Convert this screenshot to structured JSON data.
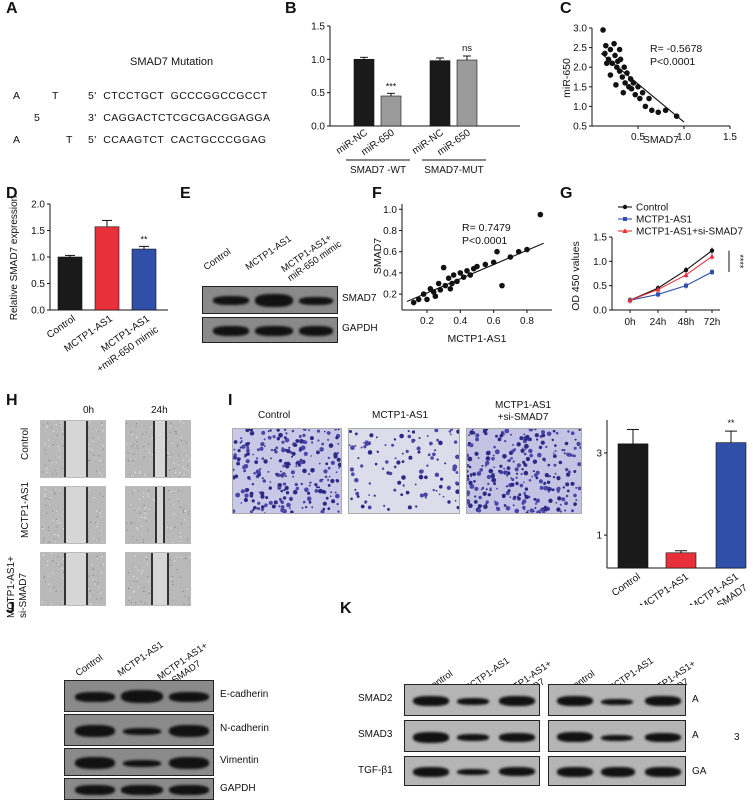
{
  "panels": {
    "A": {
      "letter": "A",
      "title": "SMAD7 Mutation",
      "rows": [
        {
          "prefix": "A",
          "mid": "T",
          "seq": "5'  CTCCTGCT  GCCCGGCCGCCT"
        },
        {
          "prefix": "",
          "mid": "5",
          "seq": "3'  CAGGACTCTCGCGACGGAGGA"
        },
        {
          "prefix": "A",
          "mid": "T",
          "seq": "5'  CCAAGTCT  CACTGCCCGGAG"
        }
      ]
    },
    "B": {
      "letter": "B",
      "groups": [
        "SMAD7 -WT",
        "SMAD7-MUT"
      ],
      "annotations": [
        "***",
        "ns"
      ]
    },
    "C": {
      "letter": "C",
      "r_text": "R= -0.5678",
      "p_text": "P<0.0001"
    },
    "D": {
      "letter": "D",
      "annotation": "**"
    },
    "E": {
      "letter": "E",
      "columns": [
        "Control",
        "MCTP1-AS1",
        "MCTP1-AS1+\nmiR-650 mimic"
      ],
      "rows": [
        "SMAD7",
        "GAPDH"
      ]
    },
    "F": {
      "letter": "F",
      "r_text": "R= 0.7479",
      "p_text": "P<0.0001"
    },
    "G": {
      "letter": "G",
      "annotation": "****"
    },
    "H": {
      "letter": "H",
      "times": [
        "0h",
        "24h"
      ],
      "rows": [
        "Control",
        "MCTP1-AS1",
        "MCTP1-AS1+\nsi-SMAD7"
      ]
    },
    "I": {
      "letter": "I",
      "images": [
        "Control",
        "MCTP1-AS1",
        "MCTP1-AS1\n+si-SMAD7"
      ],
      "annotation": "**"
    },
    "J": {
      "letter": "J",
      "columns": [
        "Control",
        "MCTP1-AS1",
        "MCTP1-AS1+\nsi-SMAD7"
      ],
      "rows": [
        "E-cadherin",
        "N-cadherin",
        "Vimentin",
        "GAPDH"
      ]
    },
    "K": {
      "letter": "K",
      "columns": [
        "Control",
        "MCTP1-AS1",
        "MCTP1-AS1+\nsi-SMAD7"
      ],
      "rows": [
        "SMAD2",
        "SMAD3",
        "TGF-β1"
      ],
      "right_labels": [
        "A",
        "A",
        "GA"
      ],
      "extra_label": "3"
    }
  },
  "chart_data": [
    {
      "id": "B",
      "type": "bar",
      "categories": [
        "miR-NC",
        "miR-650",
        "miR-NC",
        "miR-650"
      ],
      "values": [
        1.0,
        0.45,
        0.98,
        0.99
      ],
      "errors": [
        0.03,
        0.04,
        0.04,
        0.06
      ],
      "colors": [
        "#1a1a1a",
        "#9b9b9b",
        "#1a1a1a",
        "#9b9b9b"
      ],
      "yticks": [
        0.0,
        0.5,
        1.0,
        1.5
      ],
      "ylim": [
        0,
        1.5
      ]
    },
    {
      "id": "C",
      "type": "scatter",
      "xlabel": "SMAD7",
      "ylabel": "miR-650",
      "xticks": [
        0.5,
        1.0,
        1.5
      ],
      "yticks": [
        0.5,
        1.0,
        1.5,
        2.0,
        2.5,
        3.0
      ],
      "xlim": [
        0,
        1.5
      ],
      "ylim": [
        0.5,
        3.0
      ],
      "points": [
        [
          0.12,
          2.95
        ],
        [
          0.15,
          2.55
        ],
        [
          0.14,
          2.35
        ],
        [
          0.18,
          2.2
        ],
        [
          0.2,
          2.45
        ],
        [
          0.22,
          2.1
        ],
        [
          0.24,
          2.6
        ],
        [
          0.25,
          2.3
        ],
        [
          0.27,
          2.0
        ],
        [
          0.28,
          2.15
        ],
        [
          0.3,
          1.9
        ],
        [
          0.31,
          2.2
        ],
        [
          0.33,
          1.75
        ],
        [
          0.35,
          2.0
        ],
        [
          0.36,
          1.6
        ],
        [
          0.38,
          1.85
        ],
        [
          0.4,
          1.5
        ],
        [
          0.42,
          1.7
        ],
        [
          0.43,
          1.45
        ],
        [
          0.45,
          1.6
        ],
        [
          0.47,
          1.3
        ],
        [
          0.5,
          1.5
        ],
        [
          0.52,
          1.2
        ],
        [
          0.55,
          1.35
        ],
        [
          0.58,
          1.0
        ],
        [
          0.62,
          1.2
        ],
        [
          0.65,
          0.9
        ],
        [
          0.72,
          0.85
        ],
        [
          0.8,
          0.9
        ],
        [
          0.92,
          0.75
        ],
        [
          0.2,
          1.8
        ],
        [
          0.26,
          1.55
        ],
        [
          0.34,
          1.35
        ],
        [
          0.3,
          2.45
        ],
        [
          0.16,
          2.1
        ]
      ],
      "fit": [
        [
          0.1,
          2.35
        ],
        [
          1.0,
          0.6
        ]
      ]
    },
    {
      "id": "D",
      "type": "bar",
      "ylabel": "Relative SMAD7 expression",
      "categories": [
        "Control",
        "MCTP1-AS1",
        "MCTP1-AS1\n+miR-650 mimic"
      ],
      "values": [
        1.0,
        1.57,
        1.15
      ],
      "errors": [
        0.03,
        0.12,
        0.05
      ],
      "colors": [
        "#1a1a1a",
        "#e8303a",
        "#2f4fa8"
      ],
      "yticks": [
        0.0,
        0.5,
        1.0,
        1.5,
        2.0
      ],
      "ylim": [
        0,
        2.0
      ]
    },
    {
      "id": "F",
      "type": "scatter",
      "xlabel": "MCTP1-AS1",
      "ylabel": "SMAD7",
      "xticks": [
        0.2,
        0.4,
        0.6,
        0.8
      ],
      "yticks": [
        0.2,
        0.4,
        0.6,
        0.8,
        1.0
      ],
      "xlim": [
        0.05,
        0.95
      ],
      "ylim": [
        0.05,
        1.05
      ],
      "points": [
        [
          0.12,
          0.12
        ],
        [
          0.15,
          0.15
        ],
        [
          0.18,
          0.2
        ],
        [
          0.2,
          0.15
        ],
        [
          0.22,
          0.25
        ],
        [
          0.25,
          0.18
        ],
        [
          0.27,
          0.3
        ],
        [
          0.28,
          0.24
        ],
        [
          0.3,
          0.45
        ],
        [
          0.31,
          0.28
        ],
        [
          0.33,
          0.35
        ],
        [
          0.35,
          0.3
        ],
        [
          0.36,
          0.38
        ],
        [
          0.38,
          0.32
        ],
        [
          0.4,
          0.4
        ],
        [
          0.42,
          0.36
        ],
        [
          0.44,
          0.42
        ],
        [
          0.46,
          0.38
        ],
        [
          0.48,
          0.44
        ],
        [
          0.5,
          0.46
        ],
        [
          0.55,
          0.48
        ],
        [
          0.6,
          0.5
        ],
        [
          0.62,
          0.6
        ],
        [
          0.65,
          0.28
        ],
        [
          0.7,
          0.55
        ],
        [
          0.75,
          0.6
        ],
        [
          0.8,
          0.62
        ],
        [
          0.88,
          0.95
        ],
        [
          0.24,
          0.22
        ],
        [
          0.34,
          0.25
        ]
      ],
      "fit": [
        [
          0.08,
          0.13
        ],
        [
          0.9,
          0.68
        ]
      ]
    },
    {
      "id": "G",
      "type": "line",
      "ylabel": "OD 450 values",
      "categories": [
        "0h",
        "24h",
        "48h",
        "72h"
      ],
      "yticks": [
        0.0,
        0.5,
        1.0,
        1.5
      ],
      "ylim": [
        0,
        1.5
      ],
      "series": [
        {
          "name": "Control",
          "values": [
            0.2,
            0.45,
            0.82,
            1.22
          ],
          "color": "#111111"
        },
        {
          "name": "MCTP1-AS1",
          "values": [
            0.2,
            0.32,
            0.5,
            0.78
          ],
          "color": "#2f4fa8"
        },
        {
          "name": "MCTP1-AS1+si-SMAD7",
          "values": [
            0.2,
            0.42,
            0.72,
            1.1
          ],
          "color": "#e8303a"
        }
      ]
    },
    {
      "id": "I",
      "type": "bar",
      "categories": [
        "Control",
        "MCTP1-AS1",
        "MCTP1-AS1\n+si-SMAD7"
      ],
      "values": [
        3.22,
        0.57,
        3.25
      ],
      "errors": [
        0.35,
        0.05,
        0.28
      ],
      "colors": [
        "#1a1a1a",
        "#e8303a",
        "#2f4fa8"
      ],
      "yticks": [
        1,
        3
      ],
      "ylim": [
        0.2,
        3.8
      ]
    }
  ]
}
